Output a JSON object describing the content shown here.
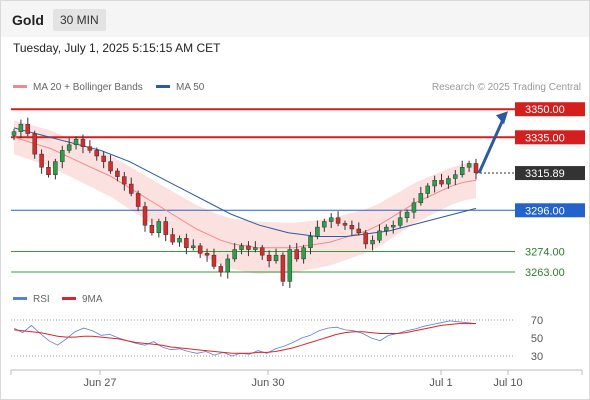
{
  "header": {
    "symbol": "Gold",
    "timeframe": "30 MIN",
    "timestamp": "Tuesday, July 1, 2025 5:15:15 AM CET"
  },
  "legend": {
    "ma20_label": "MA 20 + Bollinger Bands",
    "ma50_label": "MA 50",
    "credit": "Research © 2025 Trading Central",
    "ma20_color": "#f08a8a",
    "ma50_color": "#2d5aa0"
  },
  "rsi_legend": {
    "rsi_label": "RSI",
    "ma_label": "9MA",
    "rsi_color": "#5b7fd6",
    "ma_color": "#d9262a"
  },
  "chart_data": [
    {
      "type": "line",
      "title": "",
      "xlabel": "",
      "ylabel": "",
      "ylim": [
        3255,
        3356
      ],
      "x_ticks": [
        "Jun 27",
        "Jun 30",
        "Jul 1",
        "Jul 10"
      ],
      "last_price": 3315.89,
      "levels": [
        {
          "value": 3350.0,
          "label": "3350.00",
          "style": "resistance",
          "color": "#d41f1f"
        },
        {
          "value": 3335.0,
          "label": "3335.00",
          "style": "resistance",
          "color": "#d41f1f"
        },
        {
          "value": 3296.0,
          "label": "3296.00",
          "style": "pivot",
          "color": "#2463c9"
        },
        {
          "value": 3274.0,
          "label": "3274.00",
          "style": "support",
          "color": "#3a9b3a"
        },
        {
          "value": 3263.0,
          "label": "3263.00",
          "style": "support",
          "color": "#3a9b3a"
        }
      ],
      "series": [
        {
          "type": "candlestick",
          "closes": [
            3338,
            3342,
            3337,
            3326,
            3319,
            3315,
            3322,
            3328,
            3331,
            3334,
            3330,
            3328,
            3325,
            3322,
            3317,
            3314,
            3310,
            3305,
            3298,
            3288,
            3284,
            3290,
            3283,
            3279,
            3281,
            3276,
            3277,
            3273,
            3272,
            3266,
            3263,
            3270,
            3275,
            3277,
            3275,
            3276,
            3272,
            3269,
            3272,
            3258,
            3275,
            3270,
            3276,
            3282,
            3287,
            3290,
            3292,
            3289,
            3288,
            3286,
            3284,
            3278,
            3280,
            3285,
            3287,
            3288,
            3292,
            3295,
            3300,
            3305,
            3309,
            3312,
            3310,
            3313,
            3315,
            3319,
            3321,
            3316
          ],
          "up_color": "#2aa148",
          "down_color": "#d82b2b"
        },
        {
          "name": "MA 20",
          "values": [
            3335,
            3333,
            3331,
            3329,
            3326,
            3323,
            3320,
            3317,
            3314,
            3310,
            3306,
            3302,
            3298,
            3294,
            3290,
            3286,
            3283,
            3280,
            3278,
            3277,
            3276,
            3276,
            3276,
            3276,
            3277,
            3278,
            3279,
            3281,
            3283,
            3285,
            3288,
            3292,
            3296,
            3300,
            3303,
            3306,
            3309,
            3311,
            3312
          ]
        },
        {
          "name": "MA 50",
          "values": [
            3340,
            3338,
            3336,
            3334,
            3332,
            3330,
            3328,
            3325,
            3322,
            3318,
            3314,
            3310,
            3306,
            3302,
            3298,
            3294,
            3291,
            3288,
            3286,
            3284,
            3283,
            3282,
            3282,
            3282,
            3283,
            3284,
            3285,
            3287,
            3289,
            3291,
            3293,
            3295,
            3297
          ]
        }
      ]
    },
    {
      "type": "line",
      "title": "",
      "ylim": [
        20,
        80
      ],
      "y_ticks": [
        70,
        50,
        30
      ],
      "reference_levels": [
        70,
        30
      ],
      "x_ticks": [
        "Jun 27",
        "Jun 30",
        "Jul 1",
        "Jul 10"
      ],
      "series": [
        {
          "name": "RSI",
          "values": [
            61,
            56,
            64,
            55,
            47,
            42,
            49,
            57,
            61,
            58,
            53,
            54,
            50,
            47,
            44,
            42,
            46,
            40,
            37,
            38,
            35,
            33,
            35,
            31,
            34,
            30,
            33,
            32,
            36,
            33,
            38,
            41,
            45,
            50,
            53,
            58,
            61,
            62,
            59,
            58,
            55,
            50,
            47,
            53,
            55,
            58,
            60,
            63,
            65,
            67,
            69,
            68,
            67,
            66
          ]
        },
        {
          "name": "9MA",
          "values": [
            59,
            58,
            57,
            56,
            54,
            52,
            51,
            51,
            52,
            52,
            51,
            50,
            49,
            47,
            45,
            44,
            43,
            42,
            40,
            39,
            38,
            37,
            36,
            35,
            34,
            33,
            33,
            33,
            34,
            34,
            35,
            37,
            39,
            42,
            45,
            48,
            51,
            54,
            56,
            57,
            57,
            56,
            55,
            55,
            55,
            56,
            58,
            60,
            62,
            64,
            65,
            66,
            66,
            66
          ]
        }
      ]
    }
  ]
}
